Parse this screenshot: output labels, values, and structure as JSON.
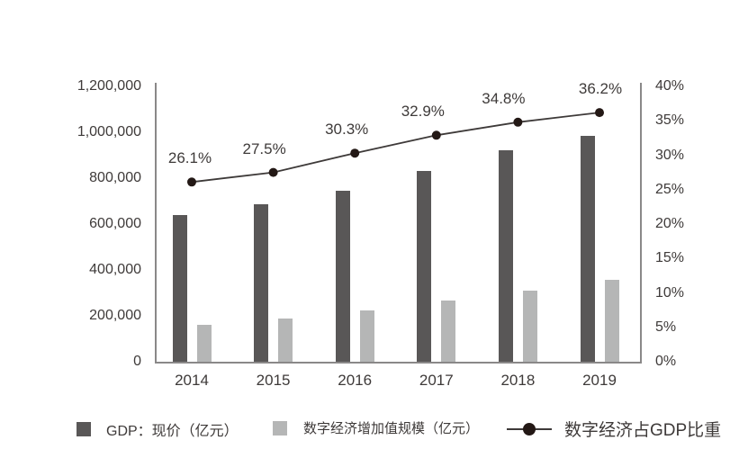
{
  "colors": {
    "gdp_bar": "#595757",
    "digital_bar": "#b5b6b6",
    "line": "#3e3a39",
    "dot": "#231815",
    "axis": "#8a8888",
    "text": "#3e3a39",
    "background": "#ffffff"
  },
  "chart_data": {
    "type": "bar",
    "subtype": "bar+line combo, dual axis",
    "categories": [
      "2014",
      "2015",
      "2016",
      "2017",
      "2018",
      "2019"
    ],
    "series": [
      {
        "name": "GDP：现价（亿元）",
        "type": "bar",
        "axis": "left",
        "color": "#595757",
        "values": [
          640000,
          685000,
          745000,
          830000,
          920000,
          985000
        ]
      },
      {
        "name": "数字经济增加值规模（亿元）",
        "type": "bar",
        "axis": "left",
        "color": "#b5b6b6",
        "values": [
          160000,
          190000,
          225000,
          265000,
          310000,
          355000
        ]
      },
      {
        "name": "数字经济占GDP比重",
        "type": "line",
        "axis": "right",
        "color": "#3e3a39",
        "values": [
          26.1,
          27.5,
          30.3,
          32.9,
          34.8,
          36.2
        ],
        "point_labels": [
          "26.1%",
          "27.5%",
          "30.3%",
          "32.9%",
          "34.8%",
          "36.2%"
        ]
      }
    ],
    "left_axis": {
      "min": 0,
      "max": 1200000,
      "step": 200000,
      "tick_labels": [
        "0",
        "200,000",
        "400,000",
        "600,000",
        "800,000",
        "1,000,000",
        "1,200,000"
      ]
    },
    "right_axis": {
      "min": 0,
      "max": 40,
      "step": 5,
      "tick_labels": [
        "0%",
        "5%",
        "10%",
        "15%",
        "20%",
        "25%",
        "30%",
        "35%",
        "40%"
      ]
    },
    "grid": false,
    "legend_position": "bottom",
    "title": ""
  },
  "legend": {
    "items": [
      {
        "label": "GDP：现价（亿元）",
        "swatch": "square-dark"
      },
      {
        "label": "数字经济增加值规模（亿元）",
        "swatch": "square-light"
      },
      {
        "label": "数字经济占GDP比重",
        "swatch": "line-dot"
      }
    ]
  }
}
